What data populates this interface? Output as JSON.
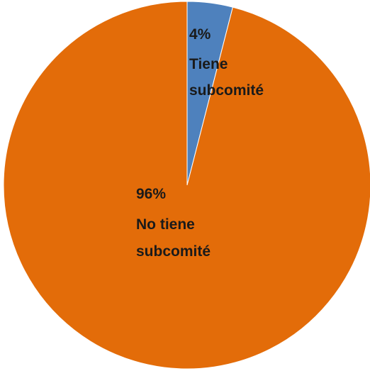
{
  "chart_data": {
    "type": "pie",
    "title": "",
    "slices": [
      {
        "label_value": "4%",
        "label_lines": [
          "Tiene",
          "subcomité"
        ],
        "value": 4,
        "color": "#4e81bd"
      },
      {
        "label_value": "96%",
        "label_lines": [
          "No tiene",
          "subcomité"
        ],
        "value": 96,
        "color": "#e36c09"
      }
    ],
    "start_angle_deg": 0,
    "direction": "clockwise",
    "legend": "none"
  }
}
